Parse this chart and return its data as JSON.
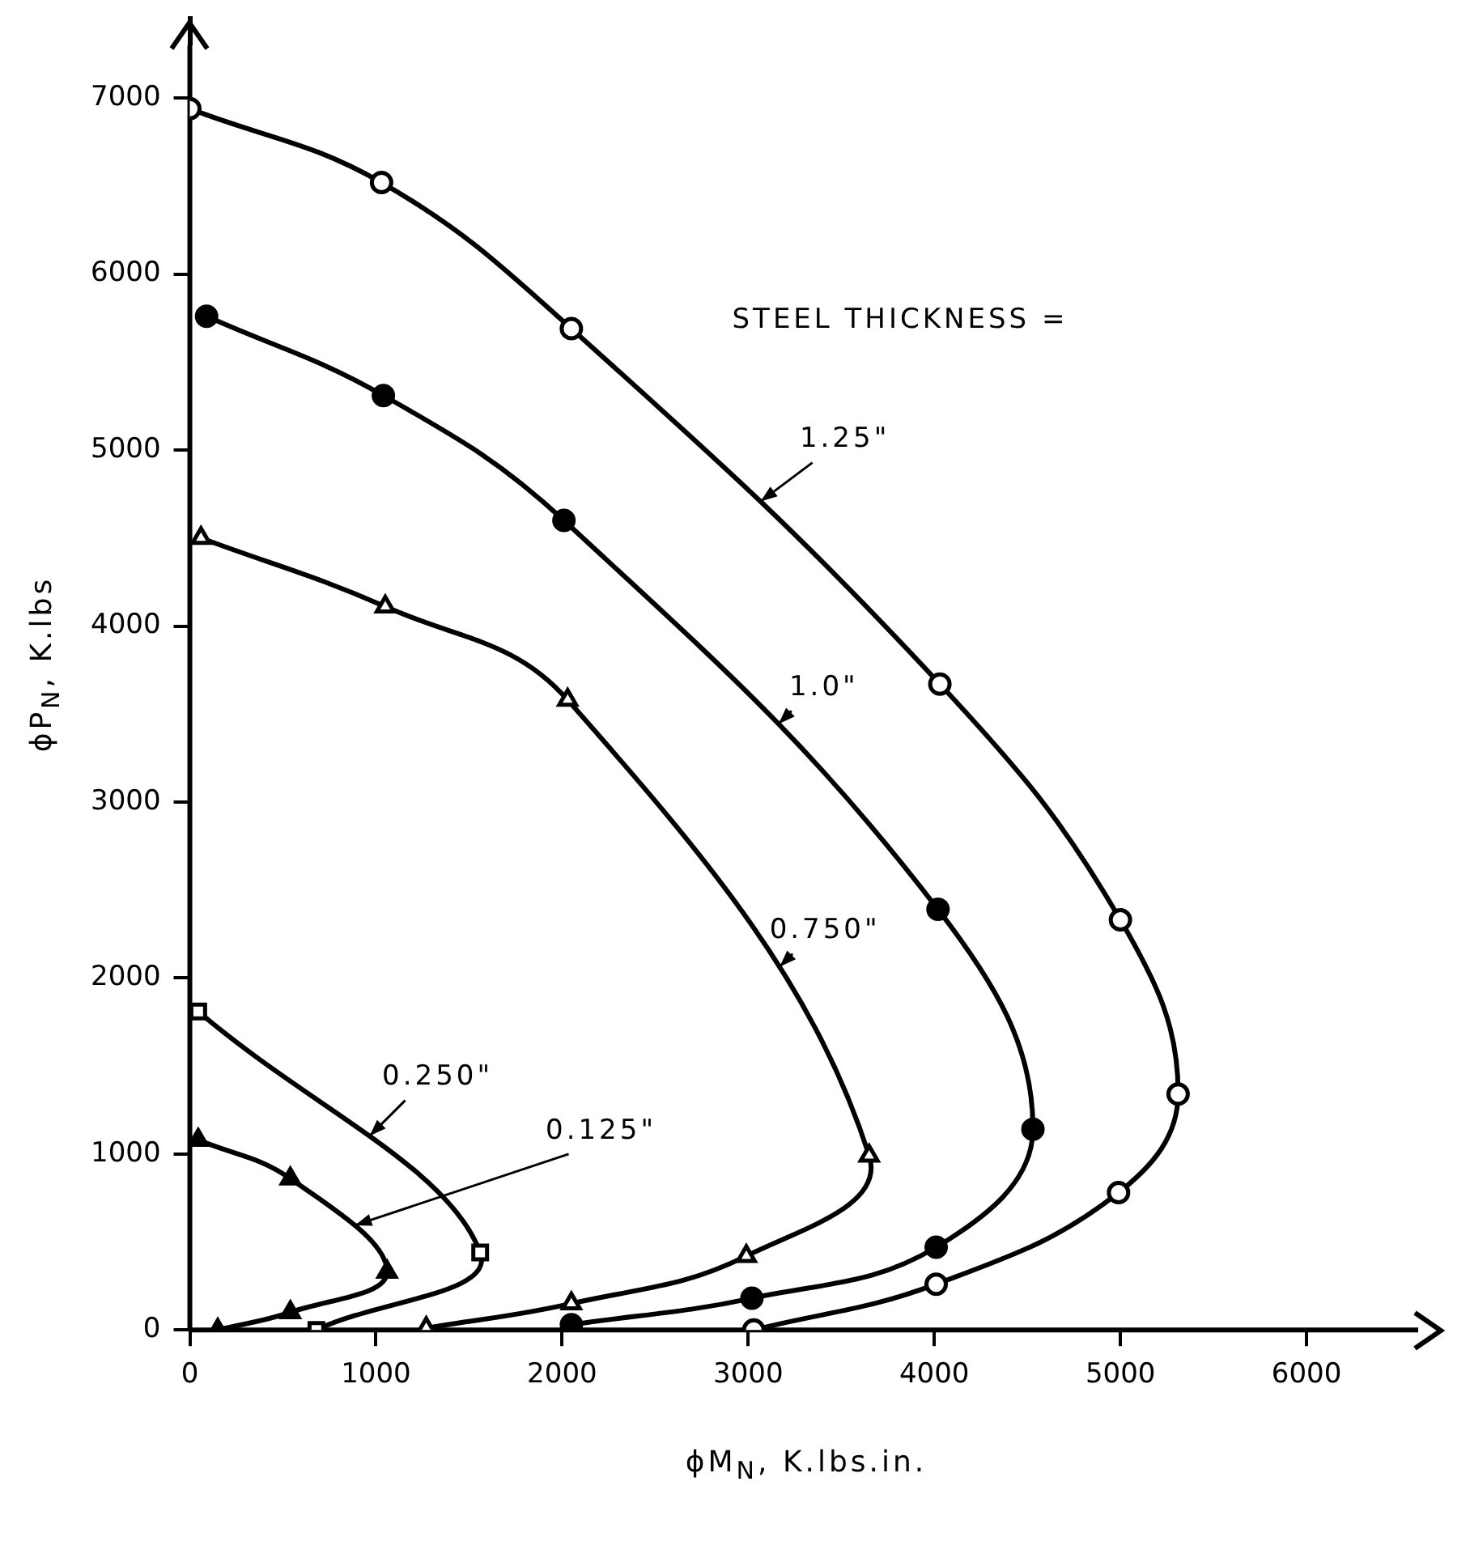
{
  "chart_data": {
    "type": "line",
    "xlabel": "ϕM$_{N}$, K.lbs.in.",
    "ylabel": "ϕP$_{N}$, K.lbs",
    "xlim": [
      0,
      6600
    ],
    "xticks": [
      0,
      1000,
      2000,
      3000,
      4000,
      5000,
      6000
    ],
    "ylim": [
      0,
      7300
    ],
    "yticks": [
      0,
      1000,
      2000,
      3000,
      4000,
      5000,
      6000,
      7000
    ],
    "grid": false,
    "legend": false,
    "line_style": "solid",
    "series": [
      {
        "name": "1.25\"",
        "color": "#000000",
        "marker": "circle",
        "colors": [
          "#ffffff",
          "#ffffff",
          "#ffffff",
          "#ffffff",
          "#ffffff",
          "#ffffff",
          "#ffffff",
          "#ffffff",
          "#ffffff"
        ],
        "x": [
          0,
          1030,
          2050,
          4030,
          5000,
          5310,
          4990,
          4010,
          3030
        ],
        "values": [
          6940,
          6520,
          5690,
          3670,
          2330,
          1340,
          780,
          260,
          0
        ]
      },
      {
        "name": "1.0\"",
        "color": "#000000",
        "marker": "circle",
        "x": [
          90,
          1040,
          2010,
          4020,
          4530,
          4010,
          3020,
          2050
        ],
        "values": [
          5760,
          5310,
          4600,
          2390,
          1140,
          470,
          180,
          30
        ]
      },
      {
        "name": "0.750\"",
        "color": "#000000",
        "marker": "triangle",
        "colors": [
          "#ffffff",
          "#ffffff",
          "#ffffff",
          "#ffffff",
          "#ffffff",
          "#ffffff",
          "#ffffff"
        ],
        "x": [
          60,
          1050,
          2030,
          3650,
          2990,
          2050,
          1270
        ],
        "values": [
          4500,
          4110,
          3580,
          990,
          420,
          150,
          10
        ]
      },
      {
        "name": "0.250\"",
        "color": "#000000",
        "marker": "square",
        "colors": [
          "#ffffff",
          "#ffffff",
          "#ffffff"
        ],
        "x": [
          45,
          1560,
          680
        ],
        "values": [
          1810,
          440,
          0
        ]
      },
      {
        "name": "0.125\"",
        "color": "#000000",
        "marker": "triangle",
        "x": [
          45,
          540,
          1060,
          540,
          150
        ],
        "values": [
          1080,
          860,
          330,
          100,
          0
        ]
      }
    ],
    "annotations": [
      "STEEL THICKNESS ="
    ]
  }
}
